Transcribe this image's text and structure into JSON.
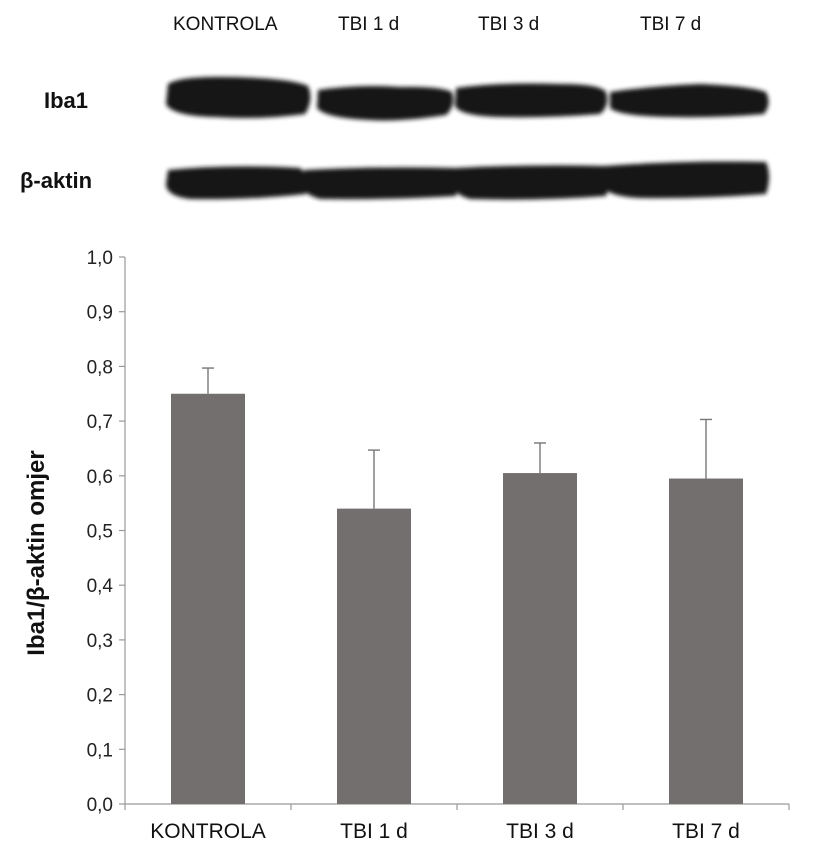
{
  "blot": {
    "lanes": [
      "KONTROLA",
      "TBI 1 d",
      "TBI 3 d",
      "TBI 7 d"
    ],
    "rows": [
      "Iba1",
      "β-aktin"
    ]
  },
  "chart_data": {
    "type": "bar",
    "categories": [
      "KONTROLA",
      "TBI 1 d",
      "TBI 3 d",
      "TBI 7 d"
    ],
    "values": [
      0.75,
      0.54,
      0.605,
      0.595
    ],
    "error": [
      0.047,
      0.107,
      0.055,
      0.108
    ],
    "ylabel": "Iba1/β-aktin omjer",
    "xlabel": "",
    "ylim": [
      0,
      1.0
    ],
    "yticks": [
      "0,0",
      "0,1",
      "0,2",
      "0,3",
      "0,4",
      "0,5",
      "0,6",
      "0,7",
      "0,8",
      "0,9",
      "1,0"
    ],
    "bar_color": "#736f6e",
    "grid": false
  }
}
